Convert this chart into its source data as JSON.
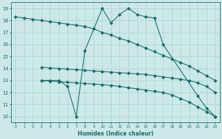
{
  "bg_color": "#cce8e8",
  "grid_color": "#aad0d0",
  "line_color": "#1a6b6b",
  "xlabel": "Humidex (Indice chaleur)",
  "xlim": [
    -0.5,
    23.5
  ],
  "ylim": [
    9.5,
    19.5
  ],
  "yticks": [
    10,
    11,
    12,
    13,
    14,
    15,
    16,
    17,
    18,
    19
  ],
  "xticks": [
    0,
    1,
    2,
    3,
    4,
    5,
    6,
    7,
    8,
    9,
    10,
    11,
    12,
    13,
    14,
    15,
    16,
    17,
    18,
    19,
    20,
    21,
    22,
    23
  ],
  "line1_x": [
    0,
    1,
    2,
    3,
    4,
    5,
    6,
    7,
    8,
    9,
    10,
    11,
    12,
    13,
    14,
    15,
    16,
    17,
    18,
    19,
    20,
    21,
    22,
    23
  ],
  "line1_y": [
    18.3,
    18.2,
    18.1,
    18.0,
    17.9,
    17.8,
    17.7,
    17.6,
    17.5,
    17.3,
    17.0,
    16.8,
    16.5,
    16.3,
    16.0,
    15.7,
    15.4,
    15.1,
    14.8,
    14.5,
    14.2,
    13.8,
    13.4,
    13.0
  ],
  "line2_x": [
    3,
    4,
    5,
    6,
    7,
    8,
    9,
    10,
    11,
    12,
    13,
    14,
    15,
    16,
    17,
    18,
    19,
    20,
    21,
    22,
    23
  ],
  "line2_y": [
    14.1,
    14.05,
    14.0,
    13.95,
    13.9,
    13.85,
    13.8,
    13.75,
    13.7,
    13.65,
    13.6,
    13.55,
    13.5,
    13.4,
    13.3,
    13.2,
    13.1,
    13.0,
    12.8,
    12.5,
    12.0
  ],
  "line3_x": [
    3,
    4,
    5,
    6,
    7,
    8,
    10,
    11,
    12,
    13,
    14,
    15,
    16,
    17,
    21,
    22,
    23
  ],
  "line3_y": [
    13.0,
    13.0,
    13.0,
    12.5,
    10.0,
    15.5,
    19.0,
    17.8,
    18.5,
    19.0,
    18.5,
    18.3,
    18.2,
    16.0,
    11.7,
    10.7,
    10.0
  ],
  "line4_x": [
    3,
    4,
    5,
    6,
    7,
    8,
    9,
    10,
    11,
    12,
    13,
    14,
    15,
    16,
    17,
    18,
    19,
    20,
    21,
    22,
    23
  ],
  "line4_y": [
    13.0,
    12.95,
    12.9,
    12.85,
    12.8,
    12.75,
    12.7,
    12.65,
    12.6,
    12.5,
    12.4,
    12.3,
    12.2,
    12.1,
    12.0,
    11.8,
    11.5,
    11.2,
    10.8,
    10.4,
    10.0
  ]
}
